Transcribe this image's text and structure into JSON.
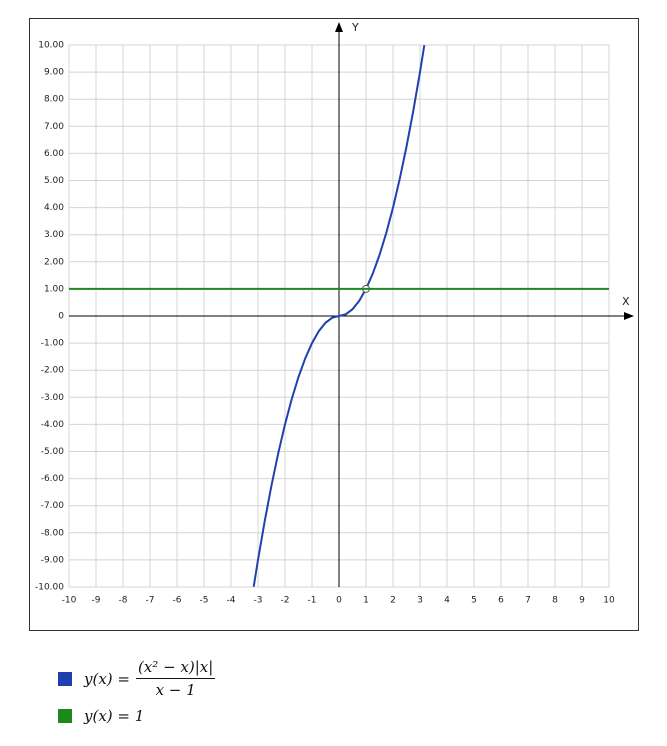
{
  "chart_data": {
    "type": "line",
    "x_label": "X",
    "y_label": "Y",
    "xlim": [
      -10,
      10
    ],
    "ylim": [
      -10,
      10
    ],
    "xticks": [
      -10,
      -9,
      -8,
      -7,
      -6,
      -5,
      -4,
      -3,
      -2,
      -1,
      0,
      1,
      2,
      3,
      4,
      5,
      6,
      7,
      8,
      9,
      10
    ],
    "yticks": [
      {
        "value": -10,
        "label": "-10.00"
      },
      {
        "value": -9,
        "label": "-9.00"
      },
      {
        "value": -8,
        "label": "-8.00"
      },
      {
        "value": -7,
        "label": "-7.00"
      },
      {
        "value": -6,
        "label": "-6.00"
      },
      {
        "value": -5,
        "label": "-5.00"
      },
      {
        "value": -4,
        "label": "-4.00"
      },
      {
        "value": -3,
        "label": "-3.00"
      },
      {
        "value": -2,
        "label": "-2.00"
      },
      {
        "value": -1,
        "label": "-1.00"
      },
      0,
      {
        "value": 1,
        "label": "1.00"
      },
      {
        "value": 2,
        "label": "2.00"
      },
      {
        "value": 3,
        "label": "3.00"
      },
      {
        "value": 4,
        "label": "4.00"
      },
      {
        "value": 5,
        "label": "5.00"
      },
      {
        "value": 6,
        "label": "6.00"
      },
      {
        "value": 7,
        "label": "7.00"
      },
      {
        "value": 8,
        "label": "8.00"
      },
      {
        "value": 9,
        "label": "9.00"
      },
      {
        "value": 10,
        "label": "10.00"
      }
    ],
    "grid": true,
    "series": [
      {
        "name_left": "y(x) =",
        "numerator": "(x² − x)|x|",
        "denominator": "x − 1",
        "color": "#2040b0",
        "x": [
          -3.16,
          -3,
          -2.75,
          -2.5,
          -2.25,
          -2,
          -1.75,
          -1.5,
          -1.25,
          -1,
          -0.75,
          -0.5,
          -0.25,
          0,
          0.25,
          0.5,
          0.75,
          1,
          1.25,
          1.5,
          1.75,
          2,
          2.25,
          2.5,
          2.75,
          3,
          3.16
        ],
        "values": [
          -9.99,
          -9,
          -7.5625,
          -6.25,
          -5.0625,
          -4,
          -3.0625,
          -2.25,
          -1.5625,
          -1,
          -0.5625,
          -0.25,
          -0.0625,
          0,
          0.0625,
          0.25,
          0.5625,
          1,
          1.5625,
          2.25,
          3.0625,
          4,
          5.0625,
          6.25,
          7.5625,
          9,
          9.99
        ],
        "hole": {
          "x": 1,
          "y": 1
        }
      },
      {
        "name": "y(x) = 1",
        "color": "#1a8a1a",
        "x": [
          -10,
          10
        ],
        "values": [
          1,
          1
        ]
      }
    ]
  }
}
